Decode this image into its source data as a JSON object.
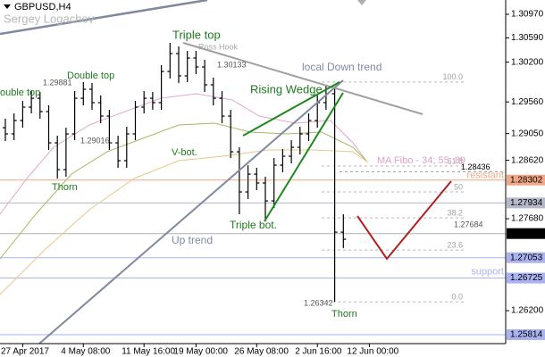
{
  "chart_data": {
    "type": "ohlc",
    "symbol": "GBPUSD,H4",
    "watermark": "Sergey Logachev",
    "color": "#000000",
    "categories": [
      null,
      null,
      "27 Apr 2017",
      null,
      null,
      null,
      null,
      null,
      null,
      "4 May 08:00",
      null,
      null,
      null,
      null,
      null,
      null,
      "11 May 16:00",
      null,
      null,
      null,
      null,
      null,
      "19 May 00:00",
      null,
      null,
      null,
      null,
      null,
      null,
      "26 May 08:00",
      null,
      null,
      null,
      null,
      null,
      null,
      "2 Jun 16:00",
      null,
      null,
      null,
      null,
      null,
      "12 Jun 00:00"
    ],
    "open": [
      1.29145,
      1.29045,
      1.2926,
      1.29476,
      1.29619,
      1.29404,
      1.28901,
      1.2847,
      1.29045,
      1.29619,
      1.29763,
      1.29548,
      1.29332,
      1.28901,
      1.28614,
      1.29045,
      1.29476,
      1.29619,
      1.29548,
      1.3005,
      1.30338,
      1.29979,
      1.30266,
      1.30122,
      1.29835,
      1.29619,
      1.29332,
      1.28757,
      1.28111,
      1.28398,
      1.28255,
      1.27967,
      1.28542,
      1.28686,
      1.28829,
      1.29045,
      1.2926,
      1.29548,
      1.29691,
      1.27464,
      null,
      null,
      null
    ],
    "high": [
      1.29289,
      1.29375,
      1.29576,
      1.29734,
      1.2972,
      1.29505,
      1.29016,
      1.29145,
      1.29734,
      1.29878,
      1.29864,
      1.29663,
      1.29433,
      1.29016,
      1.2916,
      1.29576,
      1.29734,
      1.2972,
      1.30151,
      1.3051,
      1.30453,
      1.30381,
      1.30381,
      1.30237,
      1.2995,
      1.29734,
      1.29433,
      1.28829,
      1.28542,
      1.28499,
      1.28355,
      1.28657,
      1.28801,
      1.28944,
      1.2916,
      1.29375,
      1.29663,
      1.29835,
      1.29806,
      1.27752,
      null,
      null,
      null
    ],
    "low": [
      1.2893,
      1.28944,
      1.29145,
      1.29375,
      1.29289,
      1.28786,
      1.28326,
      1.28355,
      1.28944,
      1.29505,
      1.29433,
      1.29217,
      1.28786,
      1.28499,
      1.28499,
      1.28944,
      1.29375,
      1.29433,
      1.29433,
      1.29936,
      1.29864,
      1.29878,
      1.30007,
      1.2972,
      1.29505,
      1.29217,
      1.28657,
      1.27752,
      1.27996,
      1.2814,
      1.27637,
      1.27852,
      1.28427,
      1.28571,
      1.28714,
      1.2893,
      1.29145,
      1.29433,
      1.26344,
      1.27206,
      null,
      null,
      null
    ],
    "close": [
      1.29045,
      1.2926,
      1.29476,
      1.29619,
      1.29404,
      1.28901,
      1.2847,
      1.29045,
      1.29619,
      1.29763,
      1.29548,
      1.29332,
      1.28901,
      1.28614,
      1.29045,
      1.29476,
      1.29619,
      1.29548,
      1.3005,
      1.30338,
      1.29979,
      1.30266,
      1.30122,
      1.29835,
      1.29619,
      1.29332,
      1.28757,
      1.28111,
      1.28398,
      1.28255,
      1.27967,
      1.28542,
      1.28686,
      1.28829,
      1.29045,
      1.2926,
      1.29548,
      1.29691,
      1.27464,
      1.27349,
      null,
      null,
      null
    ],
    "ylim": [
      1.2567,
      1.312
    ],
    "yticks": [
      {
        "value": 1.3097,
        "label": "1.30970"
      },
      {
        "value": 1.3059,
        "label": "1.30590"
      },
      {
        "value": 1.302,
        "label": "1.30200"
      },
      {
        "value": 1.2956,
        "label": "1.29560"
      },
      {
        "value": 1.2905,
        "label": "1.29050"
      },
      {
        "value": 1.2862,
        "label": "1.28620"
      },
      {
        "value": 1.2768,
        "label": "1.27680"
      },
      {
        "value": 1.262,
        "label": "1.26200"
      }
    ],
    "levels": [
      {
        "value": 1.28436,
        "label": "1.28436",
        "color": "#9a9a9a",
        "box": false
      },
      {
        "value": 1.28302,
        "label": "1.28302",
        "color": "#f0a888",
        "box": true,
        "name": "resistant"
      },
      {
        "value": 1.27934,
        "label": "1.27934",
        "color": "#b4b8c8",
        "box": true
      },
      {
        "value": 1.27441,
        "label": "1.27441",
        "color": "#000000",
        "box": true
      },
      {
        "value": 1.27053,
        "label": "1.27053",
        "color": "#aab2f0",
        "box": true,
        "name": "support"
      },
      {
        "value": 1.26725,
        "label": "1.26725",
        "color": "#aab2f0",
        "box": true
      },
      {
        "value": 1.25814,
        "label": "1.25814",
        "color": "#aab2f0",
        "box": true
      }
    ],
    "fibo": {
      "high": 1.29881,
      "low": 1.26342,
      "levels": [
        {
          "value": 100,
          "label": "100.0"
        },
        61.8,
        50,
        38.2,
        23.6,
        {
          "value": 0,
          "label": "0.0"
        }
      ]
    },
    "annotations": [
      "Triple top",
      "Ross Hook",
      "1.30133",
      "local Down trend",
      "Double top",
      "1.29881",
      "ouble top",
      "Rising Wedge",
      "1.29016",
      "V-bot.",
      "MA Fibo - 34; 55; 89",
      "Thorn",
      "Triple bot.",
      "1.27684",
      "Up trend",
      "1.26342",
      "Thorn"
    ]
  }
}
